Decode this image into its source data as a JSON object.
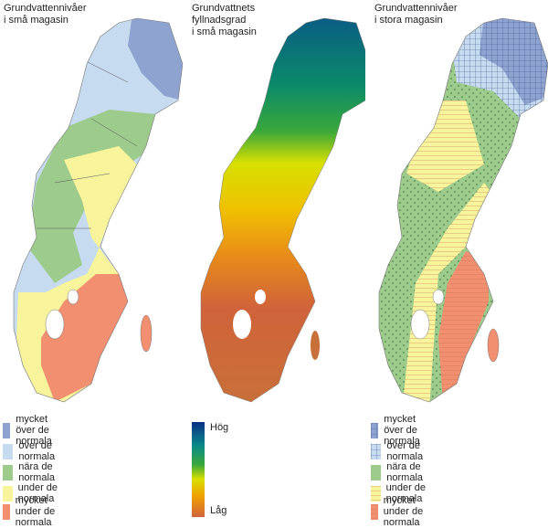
{
  "maps": [
    {
      "title_lines": [
        "Grundvattennivåer",
        "i små magasin"
      ]
    },
    {
      "title_lines": [
        "Grundvattnets",
        "fyllnadsgrad",
        "i små magasin"
      ]
    },
    {
      "title_lines": [
        "Grundvattennivåer",
        "i stora magasin"
      ]
    }
  ],
  "legend_small": {
    "items": [
      {
        "label": "mycket över de normala",
        "color": "#8fa3d1"
      },
      {
        "label": "över de normala",
        "color": "#c6dbef"
      },
      {
        "label": "nära de normala",
        "color": "#9ccb8b"
      },
      {
        "label": "under de normala",
        "color": "#f7f49c"
      },
      {
        "label": "mycket under de normala",
        "color": "#f28f70"
      }
    ]
  },
  "legend_fill": {
    "high_label": "Hög",
    "low_label": "Låg",
    "colors": [
      "#0a3f91",
      "#0a8a8a",
      "#3aa83a",
      "#cfe000",
      "#f0c000",
      "#e88a1a",
      "#d0633a"
    ]
  },
  "legend_large": {
    "items": [
      {
        "label": "mycket över de normala",
        "color": "#8fa3d1",
        "pattern": "grid"
      },
      {
        "label": "över de normala",
        "color": "#c6dbef",
        "pattern": "grid"
      },
      {
        "label": "nära de normala",
        "color": "#9ccb8b",
        "pattern": "none"
      },
      {
        "label": "under de normala",
        "color": "#f7f49c",
        "pattern": "hlines"
      },
      {
        "label": "mycket under de normala",
        "color": "#f28f70",
        "pattern": "hlines"
      }
    ]
  }
}
